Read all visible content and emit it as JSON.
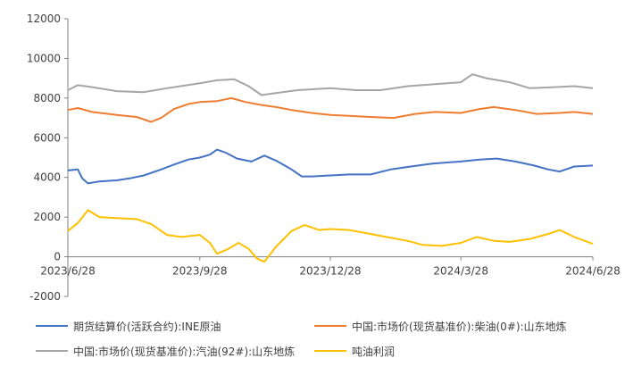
{
  "chart_data": {
    "type": "line",
    "title": "",
    "xlabel": "",
    "ylabel": "",
    "ylim": [
      -2000,
      12000
    ],
    "yticks": [
      12000,
      10000,
      8000,
      6000,
      4000,
      2000,
      0,
      -2000
    ],
    "xticks": [
      "2023/6/28",
      "2023/9/28",
      "2023/12/28",
      "2024/3/28",
      "2024/6/28"
    ],
    "xrange": [
      "2023-06-28",
      "2024-06-28"
    ],
    "grid": false,
    "legend_position": "bottom",
    "series": [
      {
        "name": "期货结算价(活跃合约):INE原油",
        "color": "#4472C4",
        "points": [
          [
            "2023-06-28",
            4350
          ],
          [
            "2023-07-05",
            4400
          ],
          [
            "2023-07-08",
            3950
          ],
          [
            "2023-07-12",
            3700
          ],
          [
            "2023-07-20",
            3800
          ],
          [
            "2023-08-01",
            3850
          ],
          [
            "2023-08-10",
            3950
          ],
          [
            "2023-08-20",
            4100
          ],
          [
            "2023-09-01",
            4400
          ],
          [
            "2023-09-10",
            4650
          ],
          [
            "2023-09-20",
            4900
          ],
          [
            "2023-09-28",
            5000
          ],
          [
            "2023-10-05",
            5150
          ],
          [
            "2023-10-10",
            5400
          ],
          [
            "2023-10-16",
            5250
          ],
          [
            "2023-10-24",
            4950
          ],
          [
            "2023-11-03",
            4800
          ],
          [
            "2023-11-12",
            5100
          ],
          [
            "2023-11-20",
            4850
          ],
          [
            "2023-12-01",
            4400
          ],
          [
            "2023-12-08",
            4050
          ],
          [
            "2023-12-15",
            4050
          ],
          [
            "2023-12-28",
            4100
          ],
          [
            "2024-01-10",
            4150
          ],
          [
            "2024-01-25",
            4150
          ],
          [
            "2024-02-08",
            4400
          ],
          [
            "2024-02-22",
            4550
          ],
          [
            "2024-03-08",
            4700
          ],
          [
            "2024-03-28",
            4800
          ],
          [
            "2024-04-10",
            4900
          ],
          [
            "2024-04-22",
            4950
          ],
          [
            "2024-05-05",
            4800
          ],
          [
            "2024-05-18",
            4600
          ],
          [
            "2024-05-28",
            4400
          ],
          [
            "2024-06-05",
            4300
          ],
          [
            "2024-06-15",
            4550
          ],
          [
            "2024-06-28",
            4600
          ]
        ]
      },
      {
        "name": "中国:市场价(现货基准价):柴油(0#):山东地炼",
        "color": "#ED7D31",
        "points": [
          [
            "2023-06-28",
            7400
          ],
          [
            "2023-07-05",
            7500
          ],
          [
            "2023-07-15",
            7300
          ],
          [
            "2023-08-01",
            7150
          ],
          [
            "2023-08-15",
            7050
          ],
          [
            "2023-08-25",
            6800
          ],
          [
            "2023-09-01",
            7000
          ],
          [
            "2023-09-10",
            7450
          ],
          [
            "2023-09-20",
            7700
          ],
          [
            "2023-09-28",
            7800
          ],
          [
            "2023-10-10",
            7850
          ],
          [
            "2023-10-20",
            8000
          ],
          [
            "2023-10-30",
            7800
          ],
          [
            "2023-11-10",
            7650
          ],
          [
            "2023-11-20",
            7550
          ],
          [
            "2023-12-01",
            7400
          ],
          [
            "2023-12-15",
            7250
          ],
          [
            "2023-12-28",
            7150
          ],
          [
            "2024-01-10",
            7100
          ],
          [
            "2024-01-25",
            7050
          ],
          [
            "2024-02-10",
            7000
          ],
          [
            "2024-02-25",
            7200
          ],
          [
            "2024-03-10",
            7300
          ],
          [
            "2024-03-28",
            7250
          ],
          [
            "2024-04-10",
            7450
          ],
          [
            "2024-04-20",
            7550
          ],
          [
            "2024-05-05",
            7400
          ],
          [
            "2024-05-20",
            7200
          ],
          [
            "2024-06-05",
            7250
          ],
          [
            "2024-06-15",
            7300
          ],
          [
            "2024-06-28",
            7200
          ]
        ]
      },
      {
        "name": "中国:市场价(现货基准价):汽油(92#):山东地炼",
        "color": "#A5A5A5",
        "points": [
          [
            "2023-06-28",
            8400
          ],
          [
            "2023-07-05",
            8650
          ],
          [
            "2023-07-15",
            8550
          ],
          [
            "2023-08-01",
            8350
          ],
          [
            "2023-08-20",
            8300
          ],
          [
            "2023-09-05",
            8500
          ],
          [
            "2023-09-28",
            8750
          ],
          [
            "2023-10-10",
            8900
          ],
          [
            "2023-10-22",
            8950
          ],
          [
            "2023-11-01",
            8600
          ],
          [
            "2023-11-10",
            8150
          ],
          [
            "2023-11-20",
            8250
          ],
          [
            "2023-12-05",
            8400
          ],
          [
            "2023-12-28",
            8500
          ],
          [
            "2024-01-15",
            8400
          ],
          [
            "2024-02-01",
            8400
          ],
          [
            "2024-02-20",
            8600
          ],
          [
            "2024-03-10",
            8700
          ],
          [
            "2024-03-28",
            8800
          ],
          [
            "2024-04-05",
            9200
          ],
          [
            "2024-04-15",
            9000
          ],
          [
            "2024-05-01",
            8800
          ],
          [
            "2024-05-15",
            8500
          ],
          [
            "2024-06-01",
            8550
          ],
          [
            "2024-06-15",
            8600
          ],
          [
            "2024-06-28",
            8500
          ]
        ]
      },
      {
        "name": "吨油利润",
        "color": "#FFC000",
        "points": [
          [
            "2023-06-28",
            1300
          ],
          [
            "2023-07-05",
            1700
          ],
          [
            "2023-07-12",
            2350
          ],
          [
            "2023-07-20",
            2000
          ],
          [
            "2023-08-01",
            1950
          ],
          [
            "2023-08-15",
            1900
          ],
          [
            "2023-08-25",
            1650
          ],
          [
            "2023-09-05",
            1100
          ],
          [
            "2023-09-15",
            1000
          ],
          [
            "2023-09-28",
            1100
          ],
          [
            "2023-10-05",
            700
          ],
          [
            "2023-10-10",
            150
          ],
          [
            "2023-10-18",
            400
          ],
          [
            "2023-10-25",
            700
          ],
          [
            "2023-11-01",
            400
          ],
          [
            "2023-11-07",
            -100
          ],
          [
            "2023-11-12",
            -250
          ],
          [
            "2023-11-20",
            500
          ],
          [
            "2023-12-01",
            1300
          ],
          [
            "2023-12-10",
            1600
          ],
          [
            "2023-12-20",
            1350
          ],
          [
            "2023-12-28",
            1400
          ],
          [
            "2024-01-10",
            1350
          ],
          [
            "2024-01-25",
            1150
          ],
          [
            "2024-02-05",
            1000
          ],
          [
            "2024-02-20",
            800
          ],
          [
            "2024-03-01",
            600
          ],
          [
            "2024-03-15",
            550
          ],
          [
            "2024-03-28",
            700
          ],
          [
            "2024-04-08",
            1000
          ],
          [
            "2024-04-20",
            800
          ],
          [
            "2024-05-01",
            750
          ],
          [
            "2024-05-15",
            900
          ],
          [
            "2024-05-28",
            1150
          ],
          [
            "2024-06-05",
            1350
          ],
          [
            "2024-06-15",
            1000
          ],
          [
            "2024-06-28",
            650
          ]
        ]
      }
    ]
  }
}
